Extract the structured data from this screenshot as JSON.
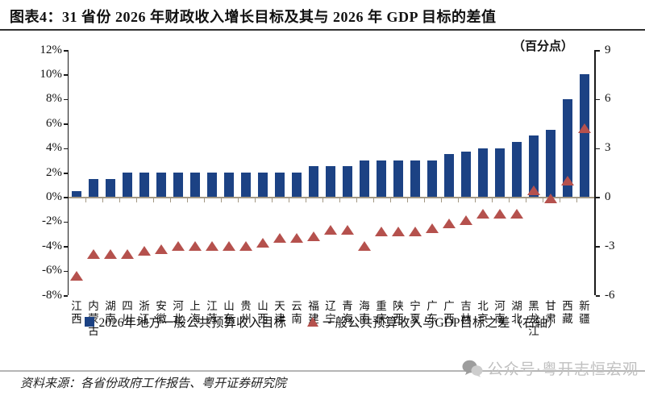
{
  "header": {
    "title": "图表4：31 省份 2026 年财政收入增长目标及其与 2026 年 GDP 目标的差值"
  },
  "chart_data": {
    "type": "combo",
    "title": "31省份2026年财政收入增长目标及其与2026年GDP目标的差值",
    "categories": [
      "江西",
      "内蒙古",
      "湖南",
      "四川",
      "浙江",
      "安徽",
      "河北",
      "上海",
      "江苏",
      "山东",
      "贵州",
      "山西",
      "天津",
      "云南",
      "福建",
      "辽宁",
      "青海",
      "海南",
      "重庆",
      "陕西",
      "宁夏",
      "广东",
      "广西",
      "吉林",
      "北京",
      "河南",
      "湖北",
      "黑龙江",
      "甘肃",
      "西藏",
      "新疆"
    ],
    "series": [
      {
        "name": "2026年地方一般公共预算收入目标",
        "type": "bar",
        "axis": "left",
        "unit": "%",
        "values": [
          0.5,
          1.5,
          1.5,
          2.0,
          2.0,
          2.0,
          2.0,
          2.0,
          2.0,
          2.0,
          2.0,
          2.0,
          2.0,
          2.0,
          2.5,
          2.5,
          2.5,
          3.0,
          3.0,
          3.0,
          3.0,
          3.0,
          3.5,
          3.7,
          4.0,
          4.0,
          4.5,
          5.0,
          5.5,
          8.0,
          10.0
        ]
      },
      {
        "name": "一般公共预算收入与GDP目标之差（右轴）",
        "type": "scatter-triangle",
        "axis": "right",
        "unit": "百分点",
        "values": [
          -4.8,
          -3.5,
          -3.5,
          -3.5,
          -3.3,
          -3.2,
          -3.0,
          -3.0,
          -3.0,
          -3.0,
          -3.0,
          -2.8,
          -2.5,
          -2.5,
          -2.4,
          -2.0,
          -2.0,
          -3.0,
          -2.1,
          -2.1,
          -2.1,
          -1.9,
          -1.6,
          -1.4,
          -1.0,
          -1.0,
          -1.0,
          0.4,
          -0.1,
          1.0,
          4.2
        ]
      }
    ],
    "left_axis": {
      "min": -8,
      "max": 12,
      "step": 2,
      "tick_labels": [
        "12%",
        "10%",
        "8%",
        "6%",
        "4%",
        "2%",
        "0%",
        "-2%",
        "-4%",
        "-6%",
        "-8%"
      ]
    },
    "right_axis": {
      "min": -6,
      "max": 9,
      "step": 3,
      "tick_labels": [
        "9",
        "6",
        "3",
        "0",
        "-3",
        "-6"
      ],
      "caption": "（百分点）"
    },
    "grid": false,
    "legend_position": "bottom"
  },
  "colors": {
    "bar": "#1c4284",
    "triangle": "#b5514d",
    "axis": "#1a1a1a",
    "zero_line": "#a39884"
  },
  "footer": {
    "source": "资料来源：各省份政府工作报告、粤开证券研究院",
    "watermark": "公众号·粤开志恒宏观"
  }
}
